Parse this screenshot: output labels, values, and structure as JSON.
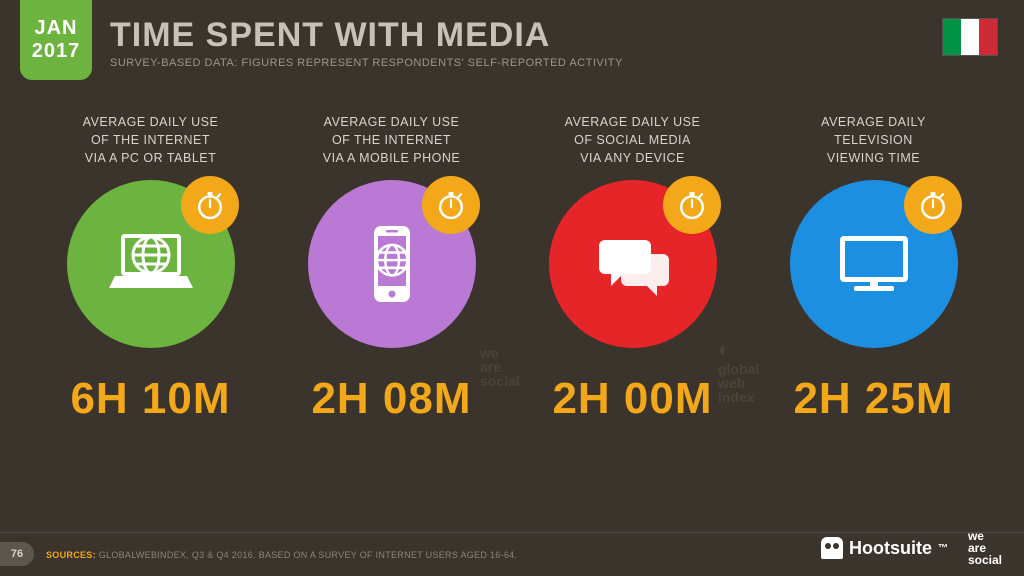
{
  "colors": {
    "background": "#3a342c",
    "accent": "#6db33f",
    "title": "#c7c2b9",
    "subtitle": "#9b968d",
    "metric_label": "#d8d4cc",
    "value": "#f2a818",
    "stopwatch_bg": "#f2a818",
    "stopwatch_fg": "#ffffff",
    "watermark": "#4a443b",
    "footer_text": "#8a857c",
    "page_badge_bg": "#5c564d",
    "page_badge_fg": "#d8d4cc"
  },
  "date": {
    "month": "JAN",
    "year": "2017"
  },
  "header": {
    "title": "TIME SPENT WITH MEDIA",
    "subtitle": "SURVEY-BASED DATA: FIGURES REPRESENT RESPONDENTS' SELF-REPORTED ACTIVITY"
  },
  "flag": {
    "stripes": [
      "#009246",
      "#ffffff",
      "#ce2b37"
    ]
  },
  "metrics": [
    {
      "label_l1": "AVERAGE DAILY USE",
      "label_l2": "OF THE INTERNET",
      "label_l3": "VIA A PC OR TABLET",
      "circle_color": "#6db33f",
      "icon": "laptop-globe",
      "value": "6H 10M"
    },
    {
      "label_l1": "AVERAGE DAILY USE",
      "label_l2": "OF THE INTERNET",
      "label_l3": "VIA A MOBILE PHONE",
      "circle_color": "#b979d4",
      "icon": "phone-globe",
      "value": "2H 08M"
    },
    {
      "label_l1": "AVERAGE DAILY USE",
      "label_l2": "OF SOCIAL MEDIA",
      "label_l3": "VIA ANY DEVICE",
      "circle_color": "#e62528",
      "icon": "chat",
      "value": "2H 00M"
    },
    {
      "label_l1": "AVERAGE DAILY",
      "label_l2": "TELEVISION",
      "label_l3": "VIEWING TIME",
      "circle_color": "#1c8fe0",
      "icon": "tv",
      "value": "2H 25M"
    }
  ],
  "watermarks": {
    "owl": "ⓞⓞ",
    "was_l1": "we",
    "was_l2": "are",
    "was_l3": "social",
    "gwi_l1": "global",
    "gwi_l2": "web",
    "gwi_l3": "index"
  },
  "footer": {
    "page": "76",
    "sources_label": "SOURCES:",
    "sources_text": " GLOBALWEBINDEX, Q3 & Q4 2016. BASED ON A SURVEY OF INTERNET USERS AGED 16-64.",
    "hootsuite": "Hootsuite",
    "tm": "™",
    "was_l1": "we",
    "was_l2": "are",
    "was_l3": "social"
  }
}
